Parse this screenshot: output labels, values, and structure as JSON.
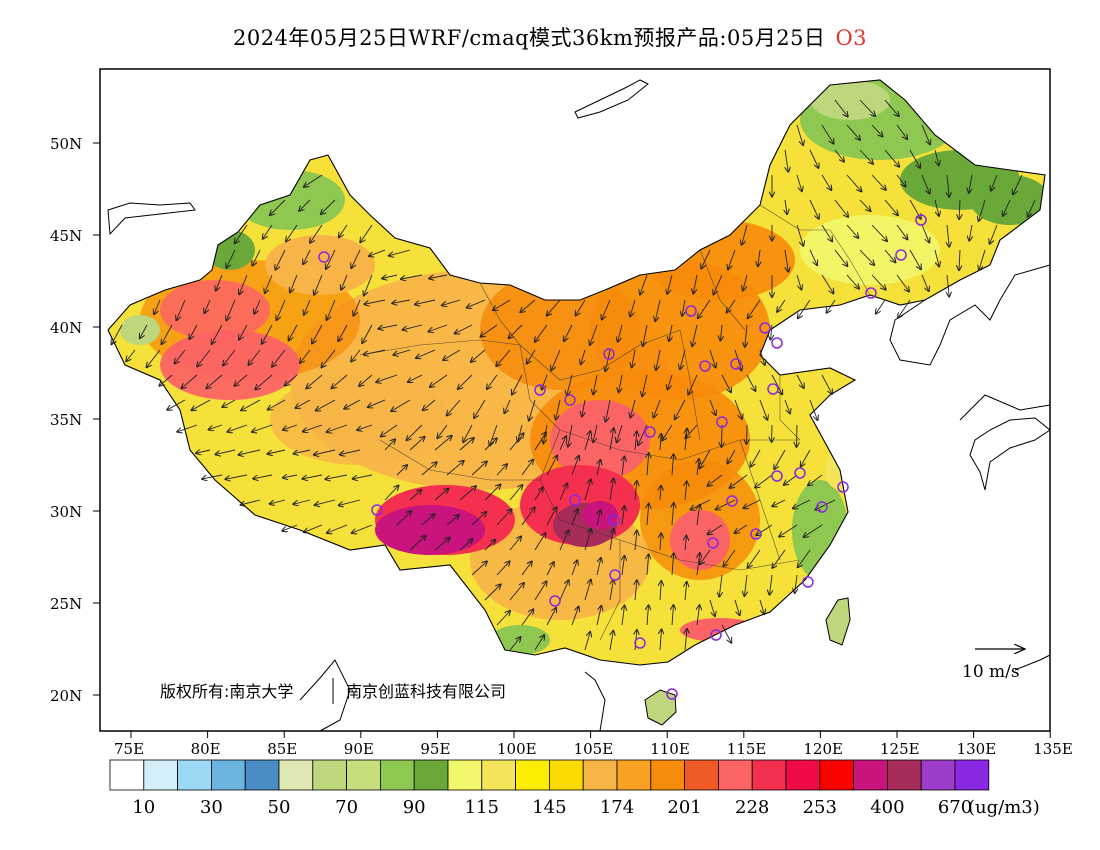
{
  "title": {
    "main": "2024年05月25日WRF/cmaq模式36km预报产品:05月25日",
    "pollutant": "O3"
  },
  "map": {
    "lat_labels": [
      "50N",
      "45N",
      "40N",
      "35N",
      "30N",
      "25N",
      "20N"
    ],
    "lon_labels": [
      "75E",
      "80E",
      "85E",
      "90E",
      "95E",
      "100E",
      "105E",
      "110E",
      "115E",
      "120E",
      "125E",
      "130E",
      "135E"
    ],
    "copyright": "版权所有:南京大学",
    "copyright2": "南京创蓝科技有限公司",
    "wind_scale": "10 m/s"
  },
  "legend": {
    "colors": [
      "#ffffff",
      "#d4eefa",
      "#9dd8f4",
      "#6cb4e0",
      "#4a8cc4",
      "#dde8b4",
      "#bed67c",
      "#c6df7c",
      "#8ec850",
      "#6aa83a",
      "#f2f86c",
      "#f4e45a",
      "#fbee00",
      "#fcdb00",
      "#f8b447",
      "#faa224",
      "#f78b0a",
      "#f05a24",
      "#fb6464",
      "#f5304e",
      "#f00a46",
      "#fd0000",
      "#c8147c",
      "#a82c5a",
      "#9c3cc8",
      "#8a28e4"
    ],
    "labels": [
      "10",
      "30",
      "50",
      "70",
      "90",
      "115",
      "145",
      "174",
      "201",
      "228",
      "253",
      "400",
      "670"
    ],
    "unit": "(ug/m3)"
  }
}
